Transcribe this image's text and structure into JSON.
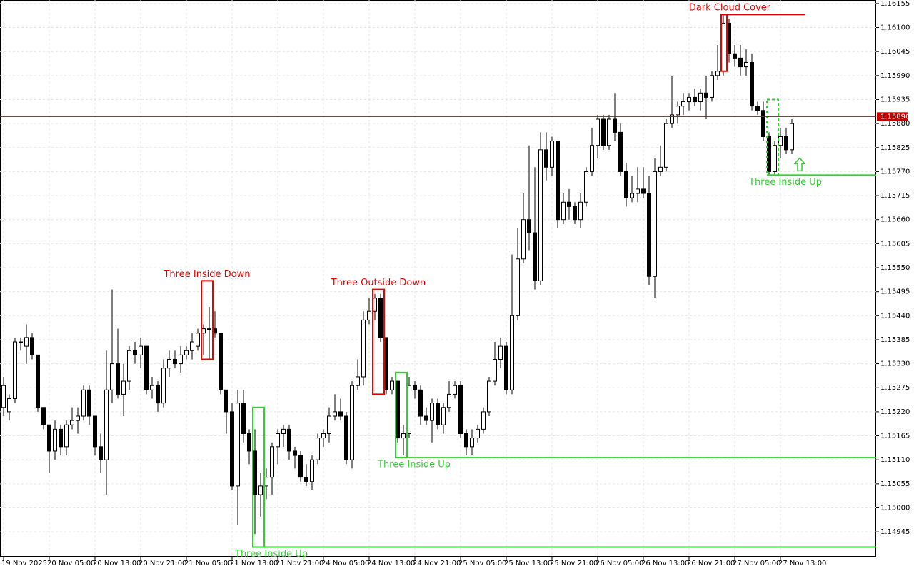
{
  "chart_data": {
    "type": "candlestick",
    "xlim": [
      -0.625,
      152.75
    ],
    "ylim": [
      1.14888,
      1.16163
    ],
    "grid": true,
    "up_color": "#ffffff",
    "down_color": "#000000",
    "xticks": [
      {
        "value": 0,
        "label": "19 Nov 2025"
      },
      {
        "value": 8,
        "label": "20 Nov 05:00"
      },
      {
        "value": 16,
        "label": "20 Nov 13:00"
      },
      {
        "value": 24,
        "label": "20 Nov 21:00"
      },
      {
        "value": 32,
        "label": "21 Nov 05:00"
      },
      {
        "value": 40,
        "label": "21 Nov 13:00"
      },
      {
        "value": 48,
        "label": "21 Nov 21:00"
      },
      {
        "value": 56,
        "label": "24 Nov 05:00"
      },
      {
        "value": 64,
        "label": "24 Nov 13:00"
      },
      {
        "value": 72,
        "label": "24 Nov 21:00"
      },
      {
        "value": 80,
        "label": "25 Nov 05:00"
      },
      {
        "value": 88,
        "label": "25 Nov 13:00"
      },
      {
        "value": 96,
        "label": "25 Nov 21:00"
      },
      {
        "value": 104,
        "label": "26 Nov 05:00"
      },
      {
        "value": 112,
        "label": "26 Nov 13:00"
      },
      {
        "value": 120,
        "label": "26 Nov 21:00"
      },
      {
        "value": 128,
        "label": "27 Nov 05:00"
      },
      {
        "value": 136,
        "label": "27 Nov 13:00"
      }
    ],
    "yticks": [
      1.16155,
      {
        "value": 1.161,
        "label": "1.16100"
      },
      1.16045,
      {
        "value": 1.1599,
        "label": "1.15990"
      },
      1.15935,
      {
        "value": 1.1588,
        "label": "1.15880"
      },
      1.15825,
      {
        "value": 1.1577,
        "label": "1.15770"
      },
      1.15715,
      {
        "value": 1.1566,
        "label": "1.15660"
      },
      1.15605,
      {
        "value": 1.1555,
        "label": "1.15550"
      },
      1.15495,
      {
        "value": 1.1544,
        "label": "1.15440"
      },
      1.15385,
      {
        "value": 1.1533,
        "label": "1.15330"
      },
      1.15275,
      {
        "value": 1.1522,
        "label": "1.15220"
      },
      1.15165,
      {
        "value": 1.1511,
        "label": "1.15110"
      },
      1.15055,
      {
        "value": 1.15,
        "label": "1.15000"
      },
      1.14945
    ],
    "last_price": {
      "value": 1.15896,
      "color": "#c80000"
    },
    "open": [
      1.1523,
      1.1522,
      1.1525,
      1.1538,
      1.1537,
      1.1539,
      1.1535,
      1.1523,
      1.1519,
      1.1513,
      1.1518,
      1.1514,
      1.1519,
      1.152,
      1.1521,
      1.1527,
      1.1521,
      1.1514,
      1.1511,
      1.1527,
      1.1533,
      1.1526,
      1.1529,
      1.1536,
      1.1535,
      1.1537,
      1.1527,
      1.1528,
      1.1524,
      1.1532,
      1.1534,
      1.1533,
      1.1535,
      1.1536,
      1.1537,
      1.154,
      1.1541,
      1.1541,
      1.154,
      1.1527,
      1.1522,
      1.1505,
      1.1524,
      1.1517,
      1.1513,
      1.1503,
      1.1505,
      1.1507,
      1.1514,
      1.1517,
      1.1518,
      1.1513,
      1.1512,
      1.1507,
      1.1506,
      1.1511,
      1.1516,
      1.1517,
      1.1521,
      1.1522,
      1.1521,
      1.1511,
      1.1528,
      1.153,
      1.1543,
      1.1545,
      1.1548,
      1.1539,
      1.1527,
      1.1529,
      1.1516,
      1.1517,
      1.1528,
      1.1527,
      1.1521,
      1.152,
      1.1524,
      1.1519,
      1.1523,
      1.1526,
      1.1528,
      1.1517,
      1.1514,
      1.1516,
      1.1518,
      1.1522,
      1.1529,
      1.1534,
      1.1537,
      1.1527,
      1.1544,
      1.1557,
      1.1566,
      1.1563,
      1.1552,
      1.1582,
      1.1578,
      1.1584,
      1.1566,
      1.157,
      1.1569,
      1.1566,
      1.157,
      1.1577,
      1.1583,
      1.1589,
      1.1583,
      1.1589,
      1.1586,
      1.1577,
      1.1571,
      1.1572,
      1.1573,
      1.1572,
      1.1553,
      1.1577,
      1.1578,
      1.1588,
      1.159,
      1.1592,
      1.1593,
      1.1594,
      1.1593,
      1.1595,
      1.1594,
      1.1599,
      1.16,
      1.1611,
      1.1604,
      1.1603,
      1.1601,
      1.1602,
      1.1592,
      1.1591,
      1.1585,
      1.1577,
      1.1583,
      1.1585,
      1.1582
    ],
    "high": [
      1.153,
      1.1526,
      1.1539,
      1.1539,
      1.1542,
      1.154,
      1.1535,
      1.1523,
      1.1519,
      1.152,
      1.1519,
      1.152,
      1.1523,
      1.1523,
      1.1528,
      1.1528,
      1.1521,
      1.1517,
      1.1536,
      1.155,
      1.1541,
      1.1533,
      1.1537,
      1.1538,
      1.1539,
      1.1537,
      1.153,
      1.1529,
      1.1534,
      1.1536,
      1.1536,
      1.1537,
      1.1537,
      1.154,
      1.1541,
      1.1542,
      1.1546,
      1.1545,
      1.154,
      1.1527,
      1.1524,
      1.1527,
      1.1527,
      1.1518,
      1.1518,
      1.1508,
      1.1509,
      1.1515,
      1.1518,
      1.1519,
      1.1519,
      1.1514,
      1.1513,
      1.151,
      1.1512,
      1.1517,
      1.1518,
      1.1523,
      1.1526,
      1.1525,
      1.1522,
      1.1529,
      1.1534,
      1.1545,
      1.1548,
      1.1549,
      1.1549,
      1.1539,
      1.153,
      1.1529,
      1.1519,
      1.153,
      1.1529,
      1.1528,
      1.1523,
      1.1525,
      1.1525,
      1.1524,
      1.1529,
      1.1529,
      1.1529,
      1.1518,
      1.1518,
      1.1519,
      1.1523,
      1.153,
      1.1538,
      1.1539,
      1.1538,
      1.1558,
      1.1564,
      1.1572,
      1.1583,
      1.1578,
      1.1586,
      1.1586,
      1.1585,
      1.1584,
      1.1572,
      1.1573,
      1.157,
      1.1572,
      1.1578,
      1.1587,
      1.159,
      1.159,
      1.159,
      1.1595,
      1.1588,
      1.1579,
      1.1576,
      1.1578,
      1.1578,
      1.1576,
      1.158,
      1.1583,
      1.1589,
      1.1599,
      1.1593,
      1.1595,
      1.1595,
      1.1596,
      1.1596,
      1.1599,
      1.16,
      1.1606,
      1.1613,
      1.1612,
      1.1606,
      1.1606,
      1.1605,
      1.1604,
      1.1593,
      1.1593,
      1.1586,
      1.1584,
      1.1587,
      1.1587,
      1.1589
    ],
    "low": [
      1.1521,
      1.152,
      1.1524,
      1.1536,
      1.1533,
      1.1534,
      1.1522,
      1.1518,
      1.1508,
      1.1511,
      1.1512,
      1.1512,
      1.1518,
      1.1517,
      1.152,
      1.1519,
      1.1512,
      1.1508,
      1.1503,
      1.1524,
      1.1525,
      1.1521,
      1.1527,
      1.1533,
      1.1532,
      1.1526,
      1.1525,
      1.1522,
      1.1523,
      1.153,
      1.1532,
      1.1531,
      1.1534,
      1.1534,
      1.1536,
      1.1535,
      1.1534,
      1.1539,
      1.1526,
      1.1517,
      1.1504,
      1.1496,
      1.1515,
      1.151,
      1.1494,
      1.1498,
      1.1502,
      1.1503,
      1.151,
      1.1514,
      1.1511,
      1.1509,
      1.1506,
      1.1505,
      1.1504,
      1.151,
      1.1514,
      1.1515,
      1.152,
      1.152,
      1.151,
      1.1509,
      1.1527,
      1.1528,
      1.1542,
      1.1543,
      1.1538,
      1.1526,
      1.1526,
      1.1515,
      1.1512,
      1.1516,
      1.1525,
      1.1519,
      1.1519,
      1.1515,
      1.1518,
      1.1517,
      1.1522,
      1.1525,
      1.1516,
      1.1512,
      1.1512,
      1.1515,
      1.1517,
      1.1521,
      1.1528,
      1.1532,
      1.1526,
      1.1526,
      1.1543,
      1.1556,
      1.1559,
      1.155,
      1.1551,
      1.1575,
      1.1576,
      1.1564,
      1.1565,
      1.1566,
      1.1565,
      1.1564,
      1.1569,
      1.1576,
      1.158,
      1.1582,
      1.1582,
      1.1584,
      1.1576,
      1.1569,
      1.157,
      1.157,
      1.1571,
      1.1551,
      1.1548,
      1.1576,
      1.1577,
      1.1587,
      1.1588,
      1.159,
      1.1591,
      1.1592,
      1.1591,
      1.1589,
      1.1593,
      1.1598,
      1.1599,
      1.1602,
      1.1601,
      1.1599,
      1.1599,
      1.1591,
      1.159,
      1.1584,
      1.1576,
      1.1576,
      1.158,
      1.1581,
      1.1581
    ],
    "close": [
      1.1528,
      1.1525,
      1.1538,
      1.1538,
      1.1539,
      1.1535,
      1.1523,
      1.1519,
      1.1513,
      1.1518,
      1.1514,
      1.1519,
      1.152,
      1.1521,
      1.1527,
      1.1521,
      1.1514,
      1.1511,
      1.1527,
      1.1533,
      1.1526,
      1.1529,
      1.1536,
      1.1535,
      1.1537,
      1.1527,
      1.1528,
      1.1524,
      1.1532,
      1.1534,
      1.1533,
      1.1535,
      1.1536,
      1.1538,
      1.154,
      1.1541,
      1.1541,
      1.154,
      1.1527,
      1.1522,
      1.1505,
      1.1524,
      1.1517,
      1.1513,
      1.1503,
      1.1505,
      1.1507,
      1.1514,
      1.1517,
      1.1518,
      1.1513,
      1.1512,
      1.1507,
      1.1506,
      1.1511,
      1.1516,
      1.1517,
      1.1521,
      1.1522,
      1.1521,
      1.1511,
      1.1528,
      1.153,
      1.1543,
      1.1545,
      1.1548,
      1.1539,
      1.1527,
      1.1529,
      1.1516,
      1.1517,
      1.1528,
      1.1527,
      1.1521,
      1.152,
      1.1524,
      1.1519,
      1.1523,
      1.1526,
      1.1528,
      1.1517,
      1.1514,
      1.1516,
      1.1518,
      1.1522,
      1.1529,
      1.1534,
      1.1537,
      1.1527,
      1.1544,
      1.1557,
      1.1566,
      1.1563,
      1.1552,
      1.1582,
      1.1578,
      1.1584,
      1.1566,
      1.157,
      1.1569,
      1.1566,
      1.157,
      1.1577,
      1.1583,
      1.1589,
      1.1583,
      1.1589,
      1.1586,
      1.1577,
      1.1571,
      1.1572,
      1.1573,
      1.1572,
      1.1553,
      1.1577,
      1.1578,
      1.1588,
      1.159,
      1.1592,
      1.1593,
      1.1594,
      1.1593,
      1.1595,
      1.1594,
      1.1599,
      1.16,
      1.1611,
      1.1604,
      1.1603,
      1.1601,
      1.1602,
      1.1592,
      1.1591,
      1.1585,
      1.1577,
      1.1583,
      1.1585,
      1.1582,
      1.1588
    ],
    "patterns": [
      {
        "label": "Three Inside Down",
        "color": "#e60000",
        "start": 35,
        "end": 36,
        "high": 1.1552,
        "low": 1.1534,
        "line": null,
        "dashed": false
      },
      {
        "label": "Three Outside Down",
        "color": "#e60000",
        "start": 65,
        "end": 66,
        "high": 1.155,
        "low": 1.1526,
        "line": null,
        "dashed": false
      },
      {
        "label": "Dark Cloud Cover",
        "color": "#e60000",
        "start": 126,
        "end": 126,
        "high": 1.1613,
        "low": 1.16,
        "line": "high",
        "dashed": false
      },
      {
        "label": "Three Inside Up",
        "color": "#32cd32",
        "start": 44,
        "end": 45,
        "high": 1.1523,
        "low": 1.1491,
        "line": "low",
        "dashed": false
      },
      {
        "label": "Three Inside Up",
        "color": "#32cd32",
        "start": 69,
        "end": 70,
        "high": 1.1531,
        "low": 1.15115,
        "line": "low",
        "dashed": false
      },
      {
        "label": "Three Inside Up",
        "color": "#32cd32",
        "start": 134,
        "end": 135,
        "high": 1.15935,
        "low": 1.15762,
        "line": "low",
        "dashed": true
      }
    ]
  }
}
